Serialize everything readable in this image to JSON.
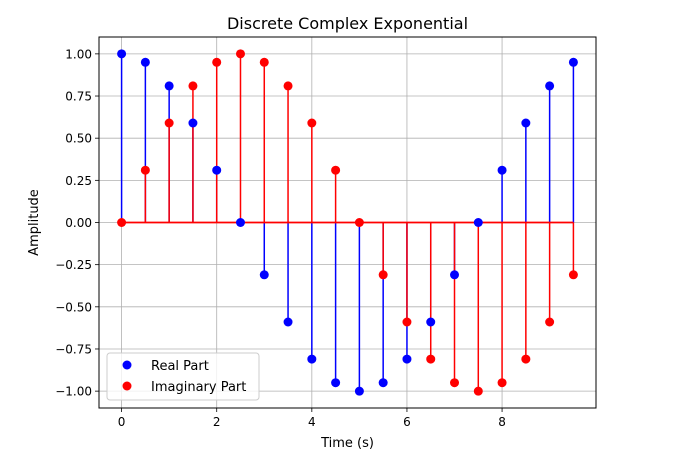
{
  "chart_data": {
    "type": "stem",
    "title": "Discrete Complex Exponential",
    "xlabel": "Time (s)",
    "ylabel": "Amplitude",
    "xlim": [
      -0.475,
      9.975
    ],
    "ylim": [
      -1.1,
      1.1
    ],
    "xticks": [
      0,
      2,
      4,
      6,
      8
    ],
    "xtick_labels": [
      "0",
      "2",
      "4",
      "6",
      "8"
    ],
    "yticks": [
      -1.0,
      -0.75,
      -0.5,
      -0.25,
      0.0,
      0.25,
      0.5,
      0.75,
      1.0
    ],
    "ytick_labels": [
      "−1.00",
      "−0.75",
      "−0.50",
      "−0.25",
      "0.00",
      "0.25",
      "0.50",
      "0.75",
      "1.00"
    ],
    "grid": true,
    "legend_position": "lower-left",
    "x": [
      0,
      0.5,
      1,
      1.5,
      2,
      2.5,
      3,
      3.5,
      4,
      4.5,
      5,
      5.5,
      6,
      6.5,
      7,
      7.5,
      8,
      8.5,
      9,
      9.5
    ],
    "series": [
      {
        "name": "Real Part",
        "color": "#0000ff",
        "values": [
          1.0,
          0.95,
          0.81,
          0.59,
          0.31,
          0.0,
          -0.31,
          -0.59,
          -0.81,
          -0.95,
          -1.0,
          -0.95,
          -0.81,
          -0.59,
          -0.31,
          0.0,
          0.31,
          0.59,
          0.81,
          0.95
        ]
      },
      {
        "name": "Imaginary Part",
        "color": "#ff0000",
        "values": [
          0.0,
          0.31,
          0.59,
          0.81,
          0.95,
          1.0,
          0.95,
          0.81,
          0.59,
          0.31,
          0.0,
          -0.31,
          -0.59,
          -0.81,
          -0.95,
          -1.0,
          -0.95,
          -0.81,
          -0.59,
          -0.31
        ]
      }
    ]
  }
}
